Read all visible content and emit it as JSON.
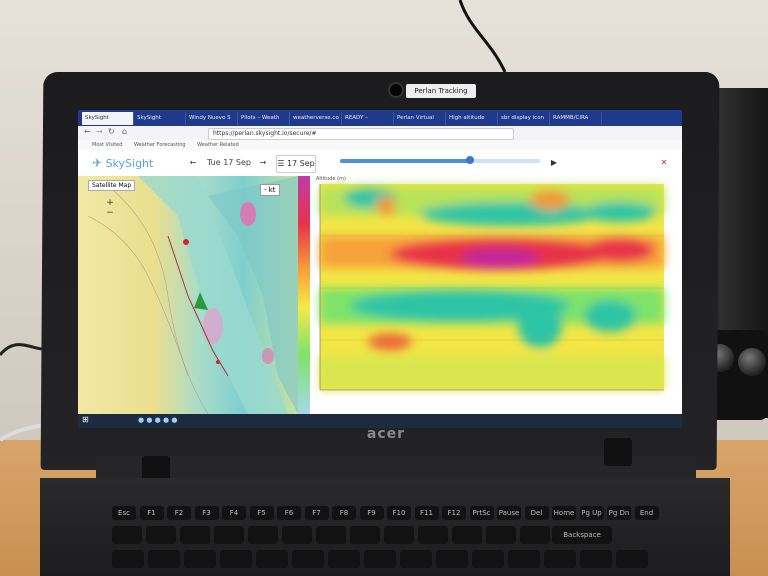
{
  "room": {
    "wall_color": "#e1dbd2",
    "table_color": "#d29b5f"
  },
  "laptop": {
    "brand": "acer",
    "webcam_label": "Perlan Tracking",
    "keys_row1": [
      "Esc",
      "F1",
      "F2",
      "F3",
      "F4",
      "F5",
      "F6",
      "F7",
      "F8",
      "F9",
      "F10",
      "F11",
      "F12",
      "PrtSc",
      "Pause",
      "Del",
      "Home",
      "Pg Up",
      "Pg Dn",
      "End"
    ],
    "keys_row2": [
      "Backspace"
    ]
  },
  "browser": {
    "tabs": [
      {
        "label": "SkySight",
        "active": true
      },
      {
        "label": "SkySight",
        "active": false
      },
      {
        "label": "Windy Nuevo S",
        "active": false
      },
      {
        "label": "Pilots – Weath",
        "active": false
      },
      {
        "label": "weatherverse.co",
        "active": false
      },
      {
        "label": "READY –",
        "active": false
      },
      {
        "label": "Perlan Virtual",
        "active": false
      },
      {
        "label": "High altitude",
        "active": false
      },
      {
        "label": "sbr display icon",
        "active": false
      },
      {
        "label": "RAMMB/CIRA",
        "active": false
      }
    ],
    "url": "https://perlan.skysight.io/secure/#",
    "bookmarks": [
      "Most Visited",
      "Weather Forecasting",
      "Weather Related"
    ]
  },
  "app": {
    "logo": "SkySight",
    "date_label": "Tue 17 Sep",
    "calendar_label": "17 Sep",
    "layer_button": "Satellite Map",
    "units_button": "- kt",
    "chart_title": "Altitude (m)",
    "accent": "#5aa3d8"
  },
  "chart_data": {
    "type": "heatmap",
    "title": "Altitude (m)",
    "xlabel": "",
    "ylabel": "",
    "colormap": [
      "#2ec4a6",
      "#7ee36a",
      "#f5e94a",
      "#f8a23a",
      "#e8324a",
      "#c0269b"
    ]
  }
}
